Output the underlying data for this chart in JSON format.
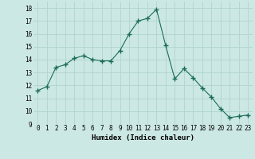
{
  "x": [
    0,
    1,
    2,
    3,
    4,
    5,
    6,
    7,
    8,
    9,
    10,
    11,
    12,
    13,
    14,
    15,
    16,
    17,
    18,
    19,
    20,
    21,
    22,
    23
  ],
  "y": [
    11.6,
    11.9,
    13.4,
    13.6,
    14.1,
    14.3,
    14.0,
    13.9,
    13.9,
    14.7,
    16.0,
    17.0,
    17.2,
    17.9,
    15.1,
    12.5,
    13.3,
    12.6,
    11.8,
    11.1,
    10.2,
    9.5,
    9.6,
    9.7
  ],
  "line_color": "#1a6b5a",
  "marker": "+",
  "marker_size": 4,
  "marker_lw": 1.0,
  "bg_color": "#cce8e4",
  "grid_color": "#b0d4ce",
  "xlabel": "Humidex (Indice chaleur)",
  "xlim": [
    -0.5,
    23.5
  ],
  "ylim": [
    9,
    18.5
  ],
  "yticks": [
    9,
    10,
    11,
    12,
    13,
    14,
    15,
    16,
    17,
    18
  ],
  "xticks": [
    0,
    1,
    2,
    3,
    4,
    5,
    6,
    7,
    8,
    9,
    10,
    11,
    12,
    13,
    14,
    15,
    16,
    17,
    18,
    19,
    20,
    21,
    22,
    23
  ],
  "xtick_labels": [
    "0",
    "1",
    "2",
    "3",
    "4",
    "5",
    "6",
    "7",
    "8",
    "9",
    "10",
    "11",
    "12",
    "13",
    "14",
    "15",
    "16",
    "17",
    "18",
    "19",
    "20",
    "21",
    "22",
    "23"
  ],
  "label_fontsize": 6.5,
  "tick_fontsize": 5.5
}
